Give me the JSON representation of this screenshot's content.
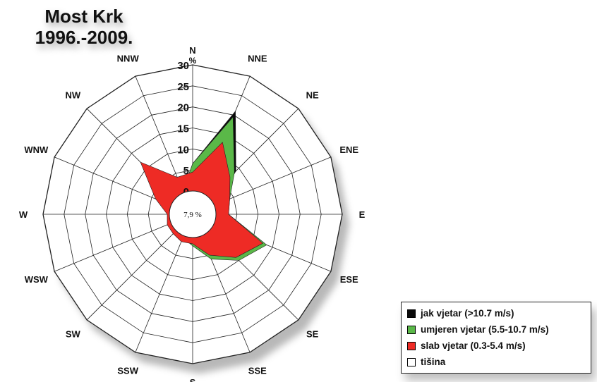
{
  "title": {
    "line1": "Most Krk",
    "line2": "1996.-2009."
  },
  "chart_data": {
    "type": "radar",
    "directions": [
      "N",
      "NNE",
      "NE",
      "ENE",
      "E",
      "ESE",
      "SE",
      "SSE",
      "S",
      "SSW",
      "SW",
      "WSW",
      "W",
      "WNW",
      "NW",
      "NNW"
    ],
    "radial_ticks": [
      "0",
      "5",
      "10",
      "15",
      "20",
      "25",
      "30"
    ],
    "radial_unit": "%",
    "rmax": 30,
    "calm": "7,9 %",
    "series": [
      {
        "name": "jak  vjetar (>10.7 m/s)",
        "color": "#0a0a0a",
        "cumulative_values": [
          6.5,
          21,
          9,
          0.5,
          0,
          0.5,
          0.5,
          0,
          0,
          0,
          0,
          0,
          0,
          0,
          0,
          0.5
        ]
      },
      {
        "name": "umjeren vjetar (5.5-10.7 m/s)",
        "color": "#5ab848",
        "cumulative_values": [
          6.5,
          19.5,
          8.5,
          4,
          3,
          13.5,
          10,
          6,
          2,
          0.5,
          0,
          0,
          0,
          0,
          0,
          0.5
        ]
      },
      {
        "name": "slab vjetar (0.3-5.4 m/s)",
        "color": "#ee2b25",
        "cumulative_values": [
          4.5,
          13,
          7,
          4,
          3,
          12.5,
          9,
          5,
          1.5,
          1.5,
          1,
          1,
          0.5,
          4,
          12,
          4
        ]
      }
    ],
    "legend_calm_label": "tišina",
    "grid": true,
    "legend_position": "bottom-right"
  }
}
